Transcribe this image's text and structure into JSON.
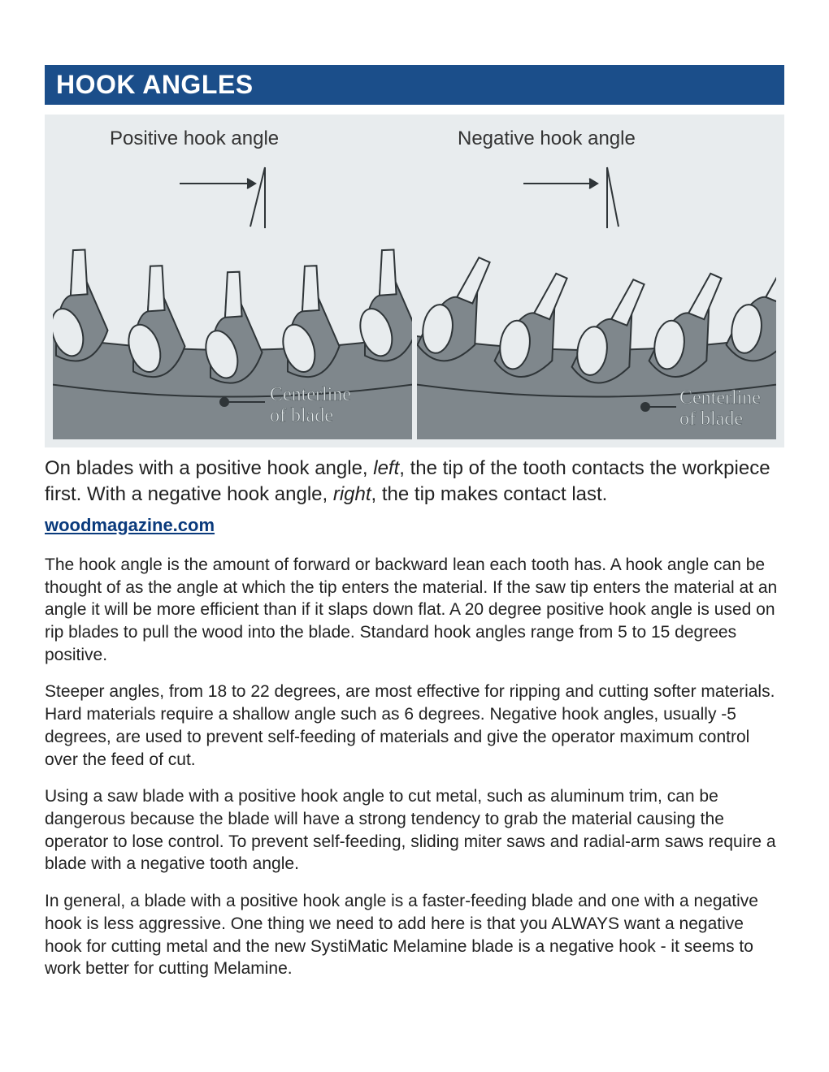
{
  "banner": {
    "title": "HOOK ANGLES",
    "bg": "#1b4e8a",
    "fg": "#ffffff"
  },
  "diagram": {
    "background": "#e8ecee",
    "panels": [
      {
        "label": "Positive hook angle",
        "centerline_label_line1": "Centerline",
        "centerline_label_line2": "of blade",
        "tooth_lean_deg": 18,
        "blade_fill": "#7f878c",
        "tooth_tip_fill": "#e9edef",
        "stroke": "#2f3538",
        "centerline_text_fill": "#dfe5e7",
        "centerline_text_stroke": "#5b6468"
      },
      {
        "label": "Negative hook angle",
        "centerline_label_line1": "Centerline",
        "centerline_label_line2": "of blade",
        "tooth_lean_deg": -8,
        "blade_fill": "#7f878c",
        "tooth_tip_fill": "#e9edef",
        "stroke": "#2f3538",
        "centerline_text_fill": "#dfe5e7",
        "centerline_text_stroke": "#5b6468"
      }
    ]
  },
  "caption": {
    "pre1": "On blades with a positive hook angle, ",
    "ital1": "left",
    "mid": ", the tip of the tooth contacts the workpiece first. With a negative hook angle, ",
    "ital2": "right",
    "post": ", the tip makes contact last."
  },
  "source": "woodmagazine.com",
  "paragraphs": [
    "The hook angle is the amount of forward or backward lean each tooth has.  A hook angle can be thought of as the angle at which the tip enters the material.  If the saw tip enters the material at an angle it will be more efficient than if it slaps down flat.  A 20 degree positive hook angle is used on rip blades to pull the wood into the blade. Standard hook angles range from 5 to 15 degrees positive.",
    " Steeper angles, from 18 to 22 degrees, are most effective for ripping and cutting softer materials.  Hard materials require a shallow angle such as 6 degrees.  Negative hook angles, usually -5 degrees, are used to prevent self-feeding of materials and give the operator maximum control over the feed of cut.",
    "Using a saw blade with a positive hook angle to cut metal, such as aluminum trim, can be dangerous because the blade will have a strong tendency to grab the material causing the operator to lose control.  To prevent self-feeding, sliding miter saws and radial-arm saws require a blade with a negative tooth angle.",
    " In general, a blade with a positive hook angle is a faster-feeding blade and one with a negative hook is less aggressive.  One thing we need to add here is that you ALWAYS want a negative hook for cutting metal and the new SystiMatic Melamine blade is a negative hook - it seems to work better for cutting Melamine."
  ]
}
